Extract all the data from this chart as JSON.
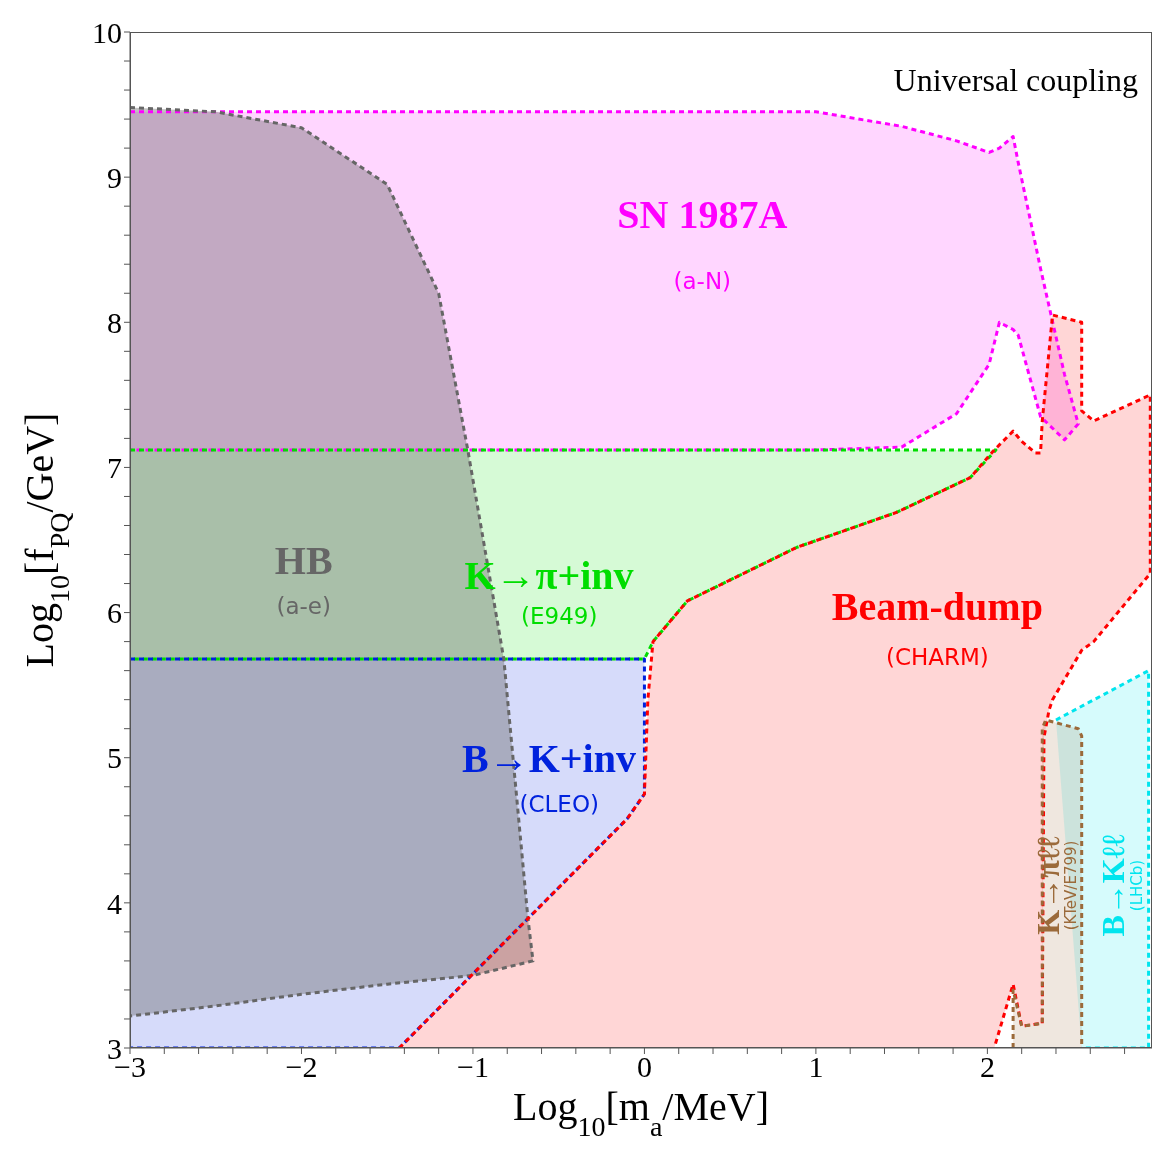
{
  "chart_data": {
    "type": "area",
    "xlabel": "Log$_{10}$[m$_{a}$/MeV]",
    "ylabel": "Log$_{10}$[f$_{PQ}$/GeV]",
    "xlim": [
      -3,
      2.96
    ],
    "ylim": [
      3,
      10
    ],
    "line_style": "dashed",
    "xticks": [
      -3,
      {
        "value": -2.8,
        "label": null
      },
      {
        "value": -2.6,
        "label": null
      },
      {
        "value": -2.4,
        "label": null
      },
      {
        "value": -2.2,
        "label": null
      },
      -2,
      {
        "value": -1.8,
        "label": null
      },
      {
        "value": -1.6,
        "label": null
      },
      {
        "value": -1.4,
        "label": null
      },
      {
        "value": -1.2,
        "label": null
      },
      -1,
      {
        "value": -0.8,
        "label": null
      },
      {
        "value": -0.6,
        "label": null
      },
      {
        "value": -0.4,
        "label": null
      },
      {
        "value": -0.2,
        "label": null
      },
      0,
      {
        "value": 0.2,
        "label": null
      },
      {
        "value": 0.4,
        "label": null
      },
      {
        "value": 0.6,
        "label": null
      },
      {
        "value": 0.8,
        "label": null
      },
      1,
      {
        "value": 1.2,
        "label": null
      },
      {
        "value": 1.4,
        "label": null
      },
      {
        "value": 1.6,
        "label": null
      },
      {
        "value": 1.8,
        "label": null
      },
      2,
      {
        "value": 2.2,
        "label": null
      },
      {
        "value": 2.4,
        "label": null
      },
      {
        "value": 2.6,
        "label": null
      },
      {
        "value": 2.8,
        "label": null
      }
    ],
    "yticks": [
      3,
      {
        "value": 3.2,
        "label": null
      },
      {
        "value": 3.4,
        "label": null
      },
      {
        "value": 3.6,
        "label": null
      },
      {
        "value": 3.8,
        "label": null
      },
      4,
      {
        "value": 4.2,
        "label": null
      },
      {
        "value": 4.4,
        "label": null
      },
      {
        "value": 4.6,
        "label": null
      },
      {
        "value": 4.8,
        "label": null
      },
      5,
      {
        "value": 5.2,
        "label": null
      },
      {
        "value": 5.4,
        "label": null
      },
      {
        "value": 5.6,
        "label": null
      },
      {
        "value": 5.8,
        "label": null
      },
      6,
      {
        "value": 6.2,
        "label": null
      },
      {
        "value": 6.4,
        "label": null
      },
      {
        "value": 6.6,
        "label": null
      },
      {
        "value": 6.8,
        "label": null
      },
      7,
      {
        "value": 7.2,
        "label": null
      },
      {
        "value": 7.4,
        "label": null
      },
      {
        "value": 7.6,
        "label": null
      },
      {
        "value": 7.8,
        "label": null
      },
      8,
      {
        "value": 8.2,
        "label": null
      },
      {
        "value": 8.4,
        "label": null
      },
      {
        "value": 8.6,
        "label": null
      },
      {
        "value": 8.8,
        "label": null
      },
      9,
      {
        "value": 9.2,
        "label": null
      },
      {
        "value": 9.4,
        "label": null
      },
      {
        "value": 9.6,
        "label": null
      },
      {
        "value": 9.8,
        "label": null
      },
      10
    ],
    "series": [
      {
        "color": "#ff00ff",
        "x": [
          -3,
          -1,
          0,
          1,
          1.5,
          1.82,
          2.01,
          2.07,
          2.15,
          2.18,
          2.31,
          2.45,
          2.53,
          2.45,
          2.31,
          2.18,
          2.15,
          2.07,
          2.01,
          1.82,
          1.5,
          1,
          0,
          -1,
          -3
        ],
        "values": [
          9.45,
          9.45,
          9.45,
          9.45,
          9.35,
          9.25,
          9.17,
          9.2,
          9.28,
          9.1,
          8.37,
          7.64,
          7.3,
          7.19,
          7.35,
          7.91,
          7.95,
          8.0,
          7.71,
          7.37,
          7.14,
          7.12,
          7.12,
          7.12,
          7.12
        ]
      },
      {
        "color": "#00dd00",
        "x": [
          -3,
          2.05,
          1.9,
          1.47,
          0.89,
          0.25,
          0.05,
          0,
          -3
        ],
        "values": [
          7.12,
          7.12,
          6.93,
          6.69,
          6.45,
          6.08,
          5.8,
          5.68,
          5.68
        ]
      },
      {
        "color": "#0022dd",
        "x": [
          -3,
          0,
          0,
          -0.1,
          -1.43,
          -3
        ],
        "values": [
          5.68,
          5.68,
          4.75,
          4.58,
          3,
          3
        ]
      },
      {
        "color": "#666666",
        "x": [
          -3,
          -2.5,
          -2,
          -1.5,
          -1.2,
          -1.03,
          -0.82,
          -0.68,
          -0.65,
          -1,
          -1.5,
          -2,
          -2.5,
          -3
        ],
        "values": [
          9.48,
          9.45,
          9.34,
          8.95,
          8.2,
          7.12,
          5.68,
          3.9,
          3.6,
          3.5,
          3.44,
          3.37,
          3.29,
          3.22
        ]
      },
      {
        "color": "#ff0000",
        "x": [
          -1.43,
          -0.1,
          0,
          0.02,
          0.05,
          0.25,
          0.89,
          1.47,
          1.9,
          2.04,
          2.15,
          2.2,
          2.28,
          2.31,
          2.32,
          2.38,
          2.55,
          2.55,
          2.62,
          2.95,
          2.95,
          2.62,
          2.55,
          2.38,
          2.36,
          2.33,
          2.32,
          2.2,
          2.15,
          2.04
        ],
        "values": [
          3,
          4.58,
          4.75,
          5.4,
          5.8,
          6.08,
          6.45,
          6.69,
          6.93,
          7.12,
          7.25,
          7.18,
          7.1,
          7.1,
          7.32,
          8.05,
          8.0,
          7.39,
          7.32,
          7.5,
          6.27,
          5.8,
          5.74,
          5.4,
          5.33,
          5.14,
          3.17,
          3.15,
          3.44,
          3
        ]
      },
      {
        "color": "#00e5ee",
        "x": [
          2.4,
          2.94,
          2.94,
          2.55
        ],
        "values": [
          5.26,
          5.6,
          3,
          3
        ]
      },
      {
        "color": "#9b6a3a",
        "x": [
          2.15,
          2.15,
          2.2,
          2.32,
          2.32,
          2.34,
          2.53,
          2.55,
          2.55
        ],
        "values": [
          3,
          3.4,
          3.15,
          3.17,
          5.2,
          5.26,
          5.2,
          5.15,
          3
        ]
      }
    ],
    "annotations": [
      "SN 1987A",
      "(a-N)",
      "HB",
      "(a-e)",
      "K→π+inv",
      "(E949)",
      "B→K+inv",
      "(CLEO)",
      "Beam-dump",
      "(CHARM)",
      "K→πℓℓ",
      "(KTeV/E799)",
      "B→Kℓℓ",
      "(LHCb)",
      "Universal coupling"
    ]
  }
}
